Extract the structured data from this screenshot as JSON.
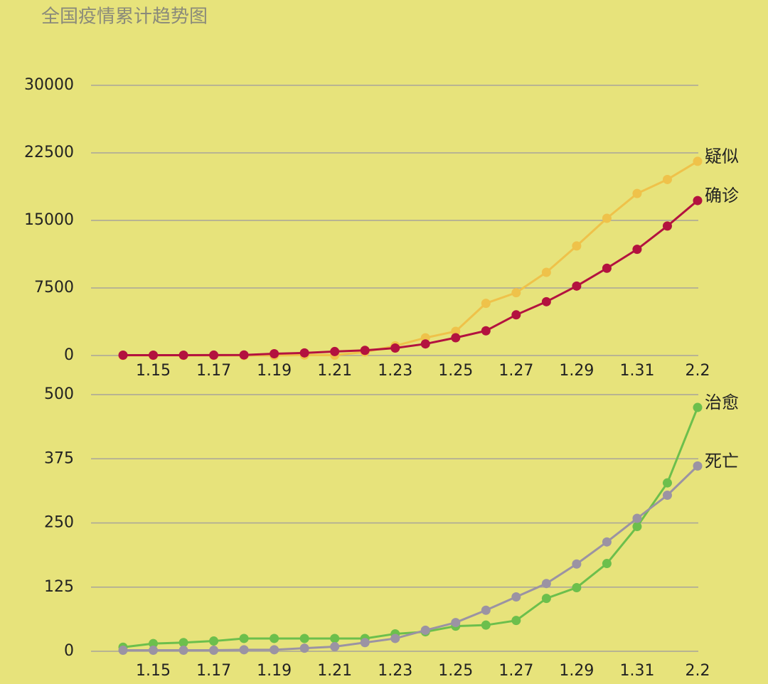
{
  "title": "全国疫情累计趋势图",
  "chart_data": [
    {
      "type": "line",
      "categories": [
        null,
        "1.15",
        null,
        "1.17",
        null,
        "1.19",
        null,
        "1.21",
        null,
        "1.23",
        null,
        "1.25",
        null,
        "1.27",
        null,
        "1.29",
        null,
        "1.31",
        null,
        "2.2"
      ],
      "series": [
        {
          "name": "疑似",
          "color": "#efc24a",
          "values": [
            0,
            0,
            0,
            0,
            0,
            0,
            54,
            37,
            393,
            1072,
            1965,
            2684,
            5794,
            6973,
            9239,
            12167,
            15238,
            17988,
            19544,
            21558
          ]
        },
        {
          "name": "确诊",
          "color": "#b3123f",
          "values": [
            41,
            41,
            41,
            45,
            62,
            198,
            291,
            440,
            571,
            830,
            1287,
            1975,
            2744,
            4515,
            5974,
            7711,
            9692,
            11791,
            14380,
            17205
          ]
        }
      ],
      "ylim": [
        0,
        30000
      ],
      "yticks": [
        0,
        7500,
        15000,
        22500,
        30000
      ],
      "grid": true
    },
    {
      "type": "line",
      "categories": [
        null,
        "1.15",
        null,
        "1.17",
        null,
        "1.19",
        null,
        "1.21",
        null,
        "1.23",
        null,
        "1.25",
        null,
        "1.27",
        null,
        "1.29",
        null,
        "1.31",
        null,
        "2.2"
      ],
      "series": [
        {
          "name": "治愈",
          "color": "#6cbf4c",
          "values": [
            8,
            15,
            17,
            20,
            25,
            25,
            25,
            25,
            25,
            34,
            38,
            49,
            51,
            60,
            103,
            124,
            171,
            243,
            328,
            475
          ]
        },
        {
          "name": "死亡",
          "color": "#9b93a3",
          "values": [
            2,
            2,
            2,
            2,
            3,
            3,
            6,
            9,
            17,
            25,
            41,
            56,
            80,
            106,
            132,
            170,
            213,
            259,
            304,
            361
          ]
        }
      ],
      "ylim": [
        0,
        500
      ],
      "yticks": [
        0,
        125,
        250,
        375,
        500
      ],
      "grid": true
    }
  ]
}
